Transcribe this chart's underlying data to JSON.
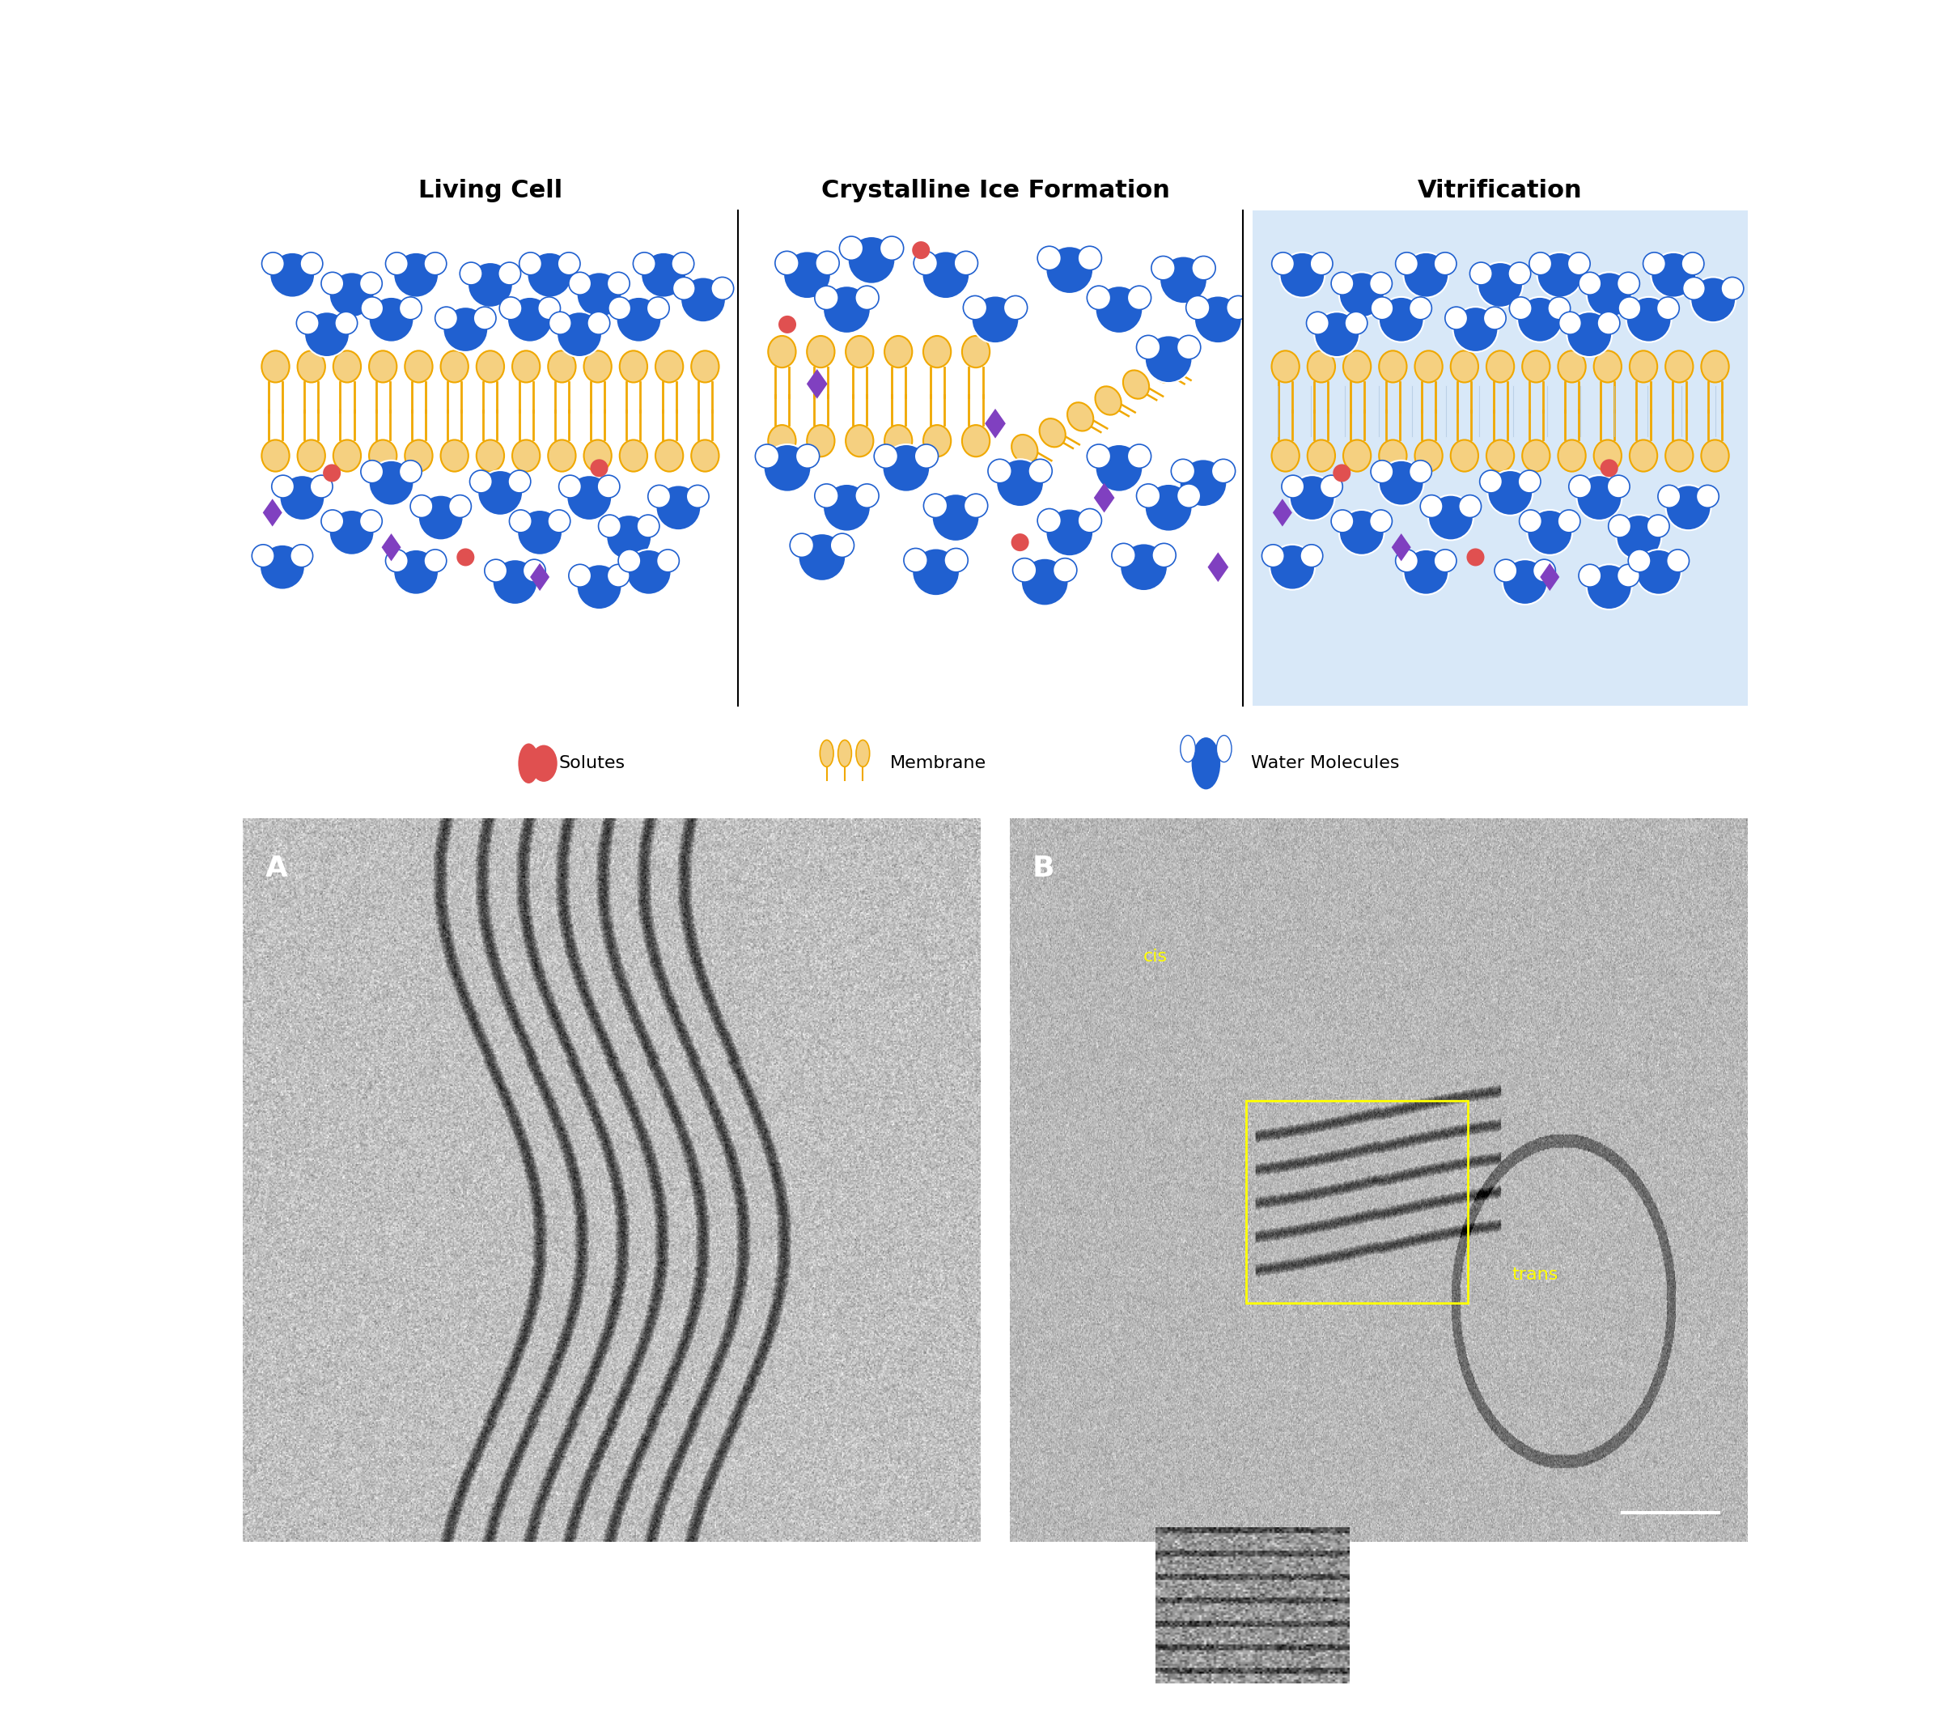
{
  "title_living_cell": "Living Cell",
  "title_crystalline": "Crystalline Ice Formation",
  "title_vitrification": "Vitrification",
  "legend_solute_color": "#E05050",
  "legend_solute_label": "Solutes",
  "legend_membrane_color": "#F0A800",
  "legend_membrane_label": "Membrane",
  "legend_water_color": "#2060D0",
  "legend_water_label": "Water Molecules",
  "blue_fill": "#2060D0",
  "blue_light": "#A0C0F0",
  "orange_fill": "#F5D080",
  "orange_stroke": "#F0A800",
  "purple_color": "#8040C0",
  "red_color": "#E05050",
  "vitrification_bg": "#D8E8F8",
  "panel_bg": "#FFFFFF",
  "title_fontsize": 22,
  "label_fontsize": 16
}
